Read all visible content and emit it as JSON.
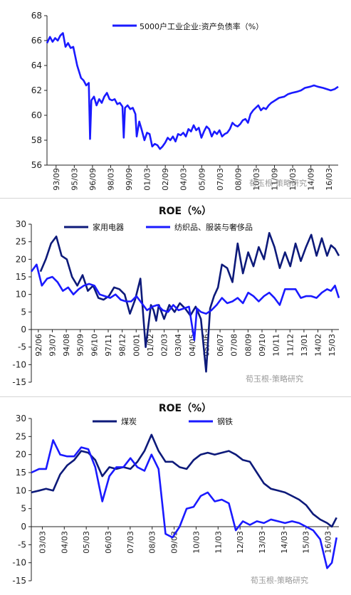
{
  "watermark": "荀玉根-策略研究",
  "chart_data": [
    {
      "type": "line",
      "title": "",
      "ylim": [
        56,
        68
      ],
      "yticks": [
        56,
        58,
        60,
        62,
        64,
        66,
        68
      ],
      "x_labels": [
        "93/09",
        "95/03",
        "96/09",
        "98/03",
        "99/09",
        "01/03",
        "02/09",
        "04/03",
        "05/09",
        "07/03",
        "08/09",
        "10/03",
        "11/09",
        "13/03",
        "14/09",
        "16/03"
      ],
      "x_range": [
        1993.67,
        2016.17
      ],
      "colors": {
        "main": "#1a1aff"
      },
      "series": [
        {
          "name": "5000户工业企业:资产负债率（%）",
          "color": "#1a1aff",
          "x": [
            1993.67,
            1993.9,
            1994.1,
            1994.3,
            1994.5,
            1994.7,
            1994.9,
            1995.1,
            1995.3,
            1995.5,
            1995.7,
            1996.0,
            1996.3,
            1996.5,
            1996.7,
            1996.9,
            1997.0,
            1997.1,
            1997.3,
            1997.5,
            1997.7,
            1997.9,
            1998.1,
            1998.3,
            1998.5,
            1998.7,
            1998.9,
            1999.1,
            1999.3,
            1999.5,
            1999.6,
            1999.7,
            1999.9,
            2000.1,
            2000.3,
            2000.5,
            2000.6,
            2000.8,
            2001.0,
            2001.2,
            2001.4,
            2001.6,
            2001.8,
            2002.0,
            2002.2,
            2002.4,
            2002.6,
            2002.8,
            2003.0,
            2003.2,
            2003.4,
            2003.6,
            2003.8,
            2004.0,
            2004.2,
            2004.4,
            2004.6,
            2004.8,
            2005.0,
            2005.2,
            2005.4,
            2005.6,
            2005.8,
            2006.0,
            2006.2,
            2006.4,
            2006.6,
            2006.8,
            2007.0,
            2007.2,
            2007.4,
            2007.6,
            2007.8,
            2008.0,
            2008.2,
            2008.4,
            2008.6,
            2008.8,
            2009.0,
            2009.2,
            2009.4,
            2009.6,
            2009.8,
            2010.0,
            2010.2,
            2010.4,
            2010.6,
            2010.8,
            2011.0,
            2011.3,
            2011.6,
            2012.0,
            2012.3,
            2012.6,
            2013.0,
            2013.3,
            2013.6,
            2014.0,
            2014.3,
            2014.6,
            2015.0,
            2015.3,
            2015.6,
            2015.9,
            2016.17
          ],
          "y": [
            65.8,
            66.3,
            65.9,
            66.2,
            66.0,
            66.4,
            66.6,
            65.5,
            65.8,
            65.4,
            65.5,
            64.0,
            63.0,
            62.8,
            62.4,
            62.6,
            58.1,
            61.2,
            61.5,
            60.8,
            61.3,
            61.0,
            61.5,
            61.8,
            61.3,
            61.2,
            61.3,
            60.9,
            61.0,
            60.7,
            58.2,
            60.6,
            60.8,
            60.5,
            60.6,
            60.1,
            58.3,
            59.5,
            58.8,
            58.0,
            58.6,
            58.5,
            57.5,
            57.7,
            57.6,
            57.3,
            57.5,
            57.8,
            58.2,
            58.0,
            58.3,
            57.9,
            58.5,
            58.4,
            58.6,
            58.3,
            58.9,
            58.7,
            59.2,
            58.8,
            59.0,
            58.2,
            58.7,
            59.1,
            58.9,
            58.3,
            58.7,
            58.5,
            58.8,
            58.3,
            58.5,
            58.6,
            58.9,
            59.4,
            59.2,
            59.1,
            59.3,
            59.6,
            59.7,
            59.4,
            60.1,
            60.4,
            60.6,
            60.8,
            60.4,
            60.6,
            60.5,
            60.8,
            61.0,
            61.2,
            61.4,
            61.5,
            61.7,
            61.8,
            61.9,
            62.0,
            62.2,
            62.3,
            62.4,
            62.3,
            62.2,
            62.1,
            62.0,
            62.1,
            62.3
          ]
        }
      ]
    },
    {
      "type": "line",
      "title": "ROE（%）",
      "ylim": [
        -15,
        30
      ],
      "yticks": [
        -15,
        -10,
        -5,
        0,
        5,
        10,
        15,
        20,
        25,
        30
      ],
      "x_labels": [
        "92/06",
        "93/07",
        "94/08",
        "95/09",
        "96/10",
        "97/11",
        "98/12",
        "00/01",
        "01/02",
        "02/03",
        "03/04",
        "04/05",
        "05/06",
        "06/07",
        "07/08",
        "08/09",
        "09/10",
        "10/11",
        "11/12",
        "13/01",
        "14/02",
        "15/03"
      ],
      "x_range": [
        1992.5,
        2015.9
      ],
      "series": [
        {
          "name": "家用电器",
          "color": "#0d1a7a",
          "x": [
            1993.2,
            1993.6,
            1994.0,
            1994.4,
            1994.8,
            1995.2,
            1995.6,
            1996.0,
            1996.4,
            1996.8,
            1997.2,
            1997.6,
            1998.0,
            1998.4,
            1998.8,
            1999.2,
            1999.6,
            2000.0,
            2000.4,
            2000.8,
            2001.2,
            2001.6,
            2001.8,
            2002.0,
            2002.2,
            2002.6,
            2003.0,
            2003.4,
            2003.8,
            2004.2,
            2004.6,
            2005.0,
            2005.4,
            2005.8,
            2006.1,
            2006.4,
            2006.7,
            2007.0,
            2007.4,
            2007.8,
            2008.2,
            2008.6,
            2009.0,
            2009.4,
            2009.8,
            2010.2,
            2010.6,
            2011.0,
            2011.4,
            2011.8,
            2012.2,
            2012.6,
            2013.0,
            2013.4,
            2013.8,
            2014.2,
            2014.6,
            2015.0,
            2015.3,
            2015.6,
            2015.9
          ],
          "y": [
            16.5,
            20.0,
            24.5,
            26.5,
            21.0,
            20.0,
            15.0,
            12.5,
            15.5,
            11.0,
            12.5,
            9.0,
            8.5,
            9.5,
            12.0,
            11.5,
            10.0,
            4.5,
            8.5,
            14.5,
            -5.0,
            7.0,
            5.5,
            2.5,
            7.0,
            3.0,
            7.0,
            5.0,
            7.5,
            6.0,
            4.0,
            6.5,
            3.0,
            -12.0,
            6.0,
            9.5,
            12.0,
            18.5,
            17.5,
            13.5,
            24.5,
            16.0,
            22.0,
            18.0,
            23.5,
            20.0,
            27.5,
            23.5,
            17.5,
            22.0,
            18.0,
            24.5,
            19.5,
            23.5,
            27.0,
            21.0,
            26.0,
            21.0,
            24.0,
            23.0,
            21.0
          ]
        },
        {
          "name": "纺织品、服装与奢侈品",
          "color": "#1a1aff",
          "x": [
            1992.5,
            1992.9,
            1993.3,
            1993.7,
            1994.1,
            1994.5,
            1994.9,
            1995.3,
            1995.7,
            1996.1,
            1996.5,
            1996.9,
            1997.3,
            1997.7,
            1998.1,
            1998.5,
            1998.9,
            1999.3,
            1999.7,
            2000.1,
            2000.5,
            2000.9,
            2001.3,
            2001.7,
            2002.1,
            2002.5,
            2002.9,
            2003.3,
            2003.7,
            2004.1,
            2004.5,
            2004.9,
            2005.1,
            2005.4,
            2005.8,
            2006.2,
            2006.6,
            2007.0,
            2007.4,
            2007.8,
            2008.2,
            2008.6,
            2009.0,
            2009.4,
            2009.8,
            2010.2,
            2010.6,
            2011.0,
            2011.4,
            2011.8,
            2012.2,
            2012.6,
            2013.0,
            2013.4,
            2013.8,
            2014.2,
            2014.6,
            2015.0,
            2015.3,
            2015.6,
            2015.9
          ],
          "y": [
            16.5,
            18.5,
            12.5,
            14.5,
            15.0,
            13.5,
            11.0,
            12.0,
            10.0,
            11.5,
            12.5,
            13.0,
            12.5,
            10.0,
            9.5,
            9.0,
            10.0,
            8.5,
            8.0,
            8.0,
            9.5,
            7.5,
            5.5,
            6.5,
            7.0,
            5.5,
            5.0,
            7.0,
            5.5,
            6.0,
            6.5,
            -3.0,
            6.0,
            5.0,
            4.5,
            5.5,
            7.0,
            9.0,
            7.5,
            8.0,
            9.0,
            7.5,
            10.5,
            9.5,
            8.0,
            9.5,
            10.5,
            9.0,
            7.0,
            11.5,
            11.5,
            11.5,
            9.0,
            9.5,
            9.5,
            9.0,
            10.5,
            11.5,
            11.0,
            12.5,
            9.0
          ]
        }
      ]
    },
    {
      "type": "line",
      "title": "ROE（%）",
      "ylim": [
        -15,
        30
      ],
      "yticks": [
        -15,
        -10,
        -5,
        0,
        5,
        10,
        15,
        20,
        25,
        30
      ],
      "x_labels": [
        "03/03",
        "04/03",
        "05/03",
        "06/03",
        "07/03",
        "08/03",
        "09/03",
        "10/03",
        "11/03",
        "12/03",
        "13/03",
        "14/03",
        "15/03",
        "16/03"
      ],
      "x_range": [
        2003.17,
        2016.3
      ],
      "series": [
        {
          "name": "煤炭",
          "color": "#0d1a7a",
          "x": [
            2003.17,
            2003.5,
            2003.8,
            2004.1,
            2004.4,
            2004.7,
            2005.0,
            2005.3,
            2005.6,
            2005.9,
            2006.2,
            2006.5,
            2006.8,
            2007.1,
            2007.4,
            2007.7,
            2008.0,
            2008.3,
            2008.6,
            2008.9,
            2009.2,
            2009.5,
            2009.8,
            2010.1,
            2010.4,
            2010.7,
            2011.0,
            2011.3,
            2011.6,
            2011.9,
            2012.2,
            2012.5,
            2012.8,
            2013.1,
            2013.4,
            2013.7,
            2014.0,
            2014.3,
            2014.6,
            2014.9,
            2015.2,
            2015.5,
            2015.8,
            2016.0,
            2016.2
          ],
          "y": [
            9.5,
            10.0,
            10.5,
            10.0,
            14.5,
            17.0,
            18.5,
            21.0,
            20.5,
            18.5,
            14.0,
            16.5,
            16.0,
            16.5,
            16.0,
            18.0,
            21.0,
            25.5,
            21.0,
            18.0,
            18.0,
            16.5,
            16.0,
            18.5,
            20.0,
            20.5,
            20.0,
            20.5,
            21.0,
            20.0,
            18.5,
            18.0,
            15.0,
            12.0,
            10.5,
            10.0,
            9.5,
            8.5,
            7.5,
            6.0,
            3.5,
            2.0,
            1.0,
            0.0,
            2.5
          ]
        },
        {
          "name": "钢铁",
          "color": "#1a1aff",
          "x": [
            2003.17,
            2003.5,
            2003.8,
            2004.1,
            2004.4,
            2004.7,
            2005.0,
            2005.3,
            2005.6,
            2005.9,
            2006.2,
            2006.5,
            2006.8,
            2007.1,
            2007.4,
            2007.7,
            2008.0,
            2008.3,
            2008.6,
            2008.9,
            2009.2,
            2009.5,
            2009.8,
            2010.1,
            2010.4,
            2010.7,
            2011.0,
            2011.3,
            2011.6,
            2011.9,
            2012.2,
            2012.5,
            2012.8,
            2013.1,
            2013.4,
            2013.7,
            2014.0,
            2014.3,
            2014.6,
            2014.9,
            2015.2,
            2015.5,
            2015.8,
            2016.0,
            2016.2
          ],
          "y": [
            15.0,
            16.0,
            16.0,
            24.0,
            20.0,
            19.5,
            19.5,
            22.0,
            21.5,
            16.5,
            7.0,
            14.0,
            16.5,
            16.5,
            19.0,
            16.5,
            15.5,
            20.0,
            16.0,
            -2.0,
            -3.0,
            0.0,
            5.0,
            5.5,
            8.5,
            9.5,
            7.0,
            7.5,
            6.5,
            -1.0,
            1.5,
            0.5,
            1.5,
            1.0,
            2.0,
            1.5,
            1.0,
            1.5,
            1.0,
            0.0,
            -1.0,
            -3.5,
            -11.5,
            -10.0,
            -3.0
          ]
        }
      ]
    }
  ]
}
